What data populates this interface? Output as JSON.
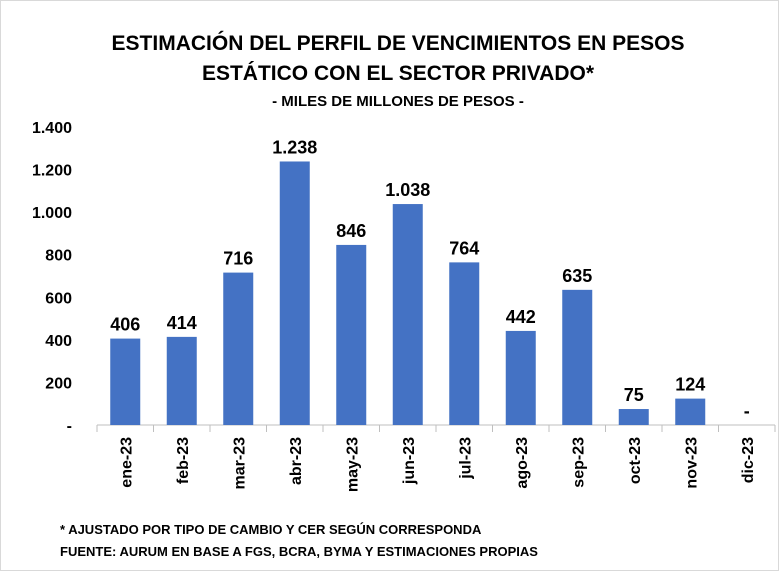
{
  "chart_data": {
    "type": "bar",
    "title": [
      "ESTIMACIÓN DEL PERFIL DE VENCIMIENTOS EN PESOS",
      "ESTÁTICO CON EL SECTOR PRIVADO*"
    ],
    "subtitle": "- MILES DE MILLONES DE PESOS -",
    "categories": [
      "ene-23",
      "feb-23",
      "mar-23",
      "abr-23",
      "may-23",
      "jun-23",
      "jul-23",
      "ago-23",
      "sep-23",
      "oct-23",
      "nov-23",
      "dic-23"
    ],
    "values": [
      406,
      414,
      716,
      1238,
      846,
      1038,
      764,
      442,
      635,
      75,
      124,
      0
    ],
    "value_labels": [
      "406",
      "414",
      "716",
      "1.238",
      "846",
      "1.038",
      "764",
      "442",
      "635",
      "75",
      "124",
      "-"
    ],
    "color": "#4472c4",
    "ylim": [
      0,
      1400
    ],
    "yticks": [
      {
        "value": 0,
        "label": "-"
      },
      200,
      400,
      600,
      800,
      {
        "value": 1000,
        "label": "1.000"
      },
      {
        "value": 1200,
        "label": "1.200"
      },
      {
        "value": 1400,
        "label": "1.400"
      }
    ],
    "grid": false,
    "notes": [
      "* AJUSTADO POR TIPO DE CAMBIO Y CER SEGÚN CORRESPONDA",
      "FUENTE: AURUM EN BASE A FGS, BCRA, BYMA Y ESTIMACIONES PROPIAS"
    ]
  }
}
